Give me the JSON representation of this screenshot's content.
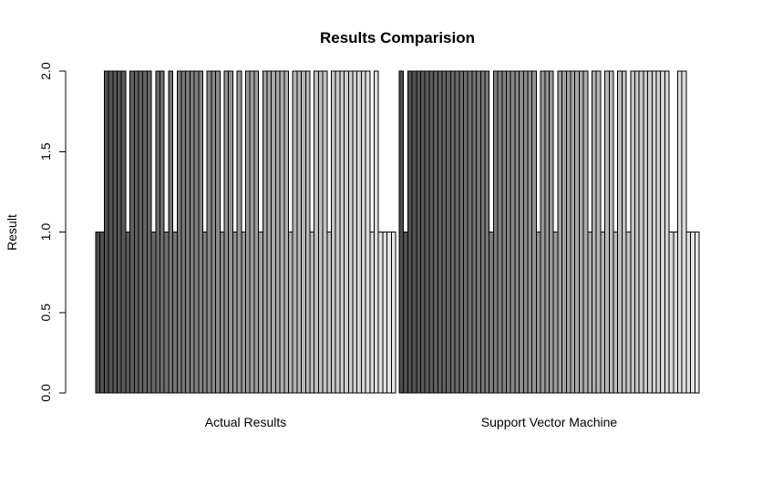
{
  "chart_data": {
    "type": "bar",
    "layout": "grouped",
    "title": "Results Comparision",
    "xlabel": "",
    "ylabel": "Result",
    "ylim": [
      0,
      2
    ],
    "yticks": [
      "0.0",
      "0.5",
      "1.0",
      "1.5",
      "2.0"
    ],
    "categories": [
      "Actual Results",
      "Support Vector Machine"
    ],
    "bars_per_group": 70,
    "fill_gradient": [
      "#4d4d4d",
      "#e6e6e6"
    ],
    "series_values": [
      [
        1,
        2
      ],
      [
        1,
        1
      ],
      [
        2,
        2
      ],
      [
        2,
        2
      ],
      [
        2,
        2
      ],
      [
        2,
        2
      ],
      [
        2,
        2
      ],
      [
        1,
        2
      ],
      [
        2,
        2
      ],
      [
        2,
        2
      ],
      [
        2,
        2
      ],
      [
        2,
        2
      ],
      [
        2,
        2
      ],
      [
        1,
        2
      ],
      [
        2,
        2
      ],
      [
        2,
        2
      ],
      [
        1,
        2
      ],
      [
        2,
        2
      ],
      [
        1,
        2
      ],
      [
        2,
        2
      ],
      [
        2,
        2
      ],
      [
        2,
        1
      ],
      [
        2,
        2
      ],
      [
        2,
        2
      ],
      [
        2,
        2
      ],
      [
        1,
        2
      ],
      [
        2,
        2
      ],
      [
        2,
        2
      ],
      [
        2,
        2
      ],
      [
        1,
        2
      ],
      [
        2,
        2
      ],
      [
        2,
        2
      ],
      [
        1,
        1
      ],
      [
        2,
        2
      ],
      [
        1,
        2
      ],
      [
        2,
        2
      ],
      [
        2,
        1
      ],
      [
        2,
        2
      ],
      [
        1,
        2
      ],
      [
        2,
        2
      ],
      [
        2,
        2
      ],
      [
        2,
        2
      ],
      [
        2,
        2
      ],
      [
        2,
        2
      ],
      [
        2,
        1
      ],
      [
        1,
        2
      ],
      [
        2,
        2
      ],
      [
        2,
        1
      ],
      [
        2,
        2
      ],
      [
        2,
        2
      ],
      [
        1,
        1
      ],
      [
        2,
        2
      ],
      [
        2,
        2
      ],
      [
        2,
        1
      ],
      [
        1,
        2
      ],
      [
        2,
        2
      ],
      [
        2,
        2
      ],
      [
        2,
        2
      ],
      [
        2,
        2
      ],
      [
        2,
        2
      ],
      [
        2,
        2
      ],
      [
        2,
        2
      ],
      [
        2,
        2
      ],
      [
        2,
        1
      ],
      [
        1,
        1
      ],
      [
        2,
        2
      ],
      [
        1,
        2
      ],
      [
        1,
        1
      ],
      [
        1,
        1
      ],
      [
        1,
        1
      ]
    ]
  }
}
